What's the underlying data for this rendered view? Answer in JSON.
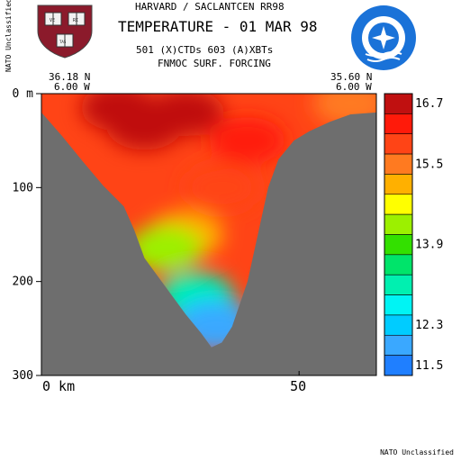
{
  "header": {
    "line1": "HARVARD / SACLANTCEN RR98",
    "title": "TEMPERATURE - 01 MAR 98",
    "line3": "501 (X)CTDs   603 (A)XBTs",
    "line4": "FNMOC SURF. FORCING"
  },
  "classification": {
    "side": "NATO Unclassified",
    "footer": "NATO Unclassified"
  },
  "endpoints": {
    "left_lat": "36.18 N",
    "left_lon": "6.00 W",
    "right_lat": "35.60 N",
    "right_lon": "6.00 W"
  },
  "logos": {
    "left": "harvard-shield",
    "left_text": [
      "VE",
      "RI",
      "TAS"
    ],
    "right": "nato-saclantcen-emblem"
  },
  "colors": {
    "land": "#6e6e6e",
    "background": "#ffffff"
  },
  "chart_data": {
    "type": "heatmap",
    "title": "TEMPERATURE - 01 MAR 98",
    "xlabel": "",
    "ylabel": "",
    "x_unit": "km",
    "y_unit": "m",
    "xlim": [
      0,
      65
    ],
    "ylim": [
      300,
      0
    ],
    "x_ticks": [
      0,
      50
    ],
    "x_tick_labels": [
      "0 km",
      "50"
    ],
    "y_ticks": [
      0,
      100,
      200,
      300
    ],
    "y_tick_labels": [
      "0 m",
      "100",
      "200",
      "300"
    ],
    "colorbar": {
      "labels": [
        "16.7",
        "15.5",
        "13.9",
        "12.3",
        "11.5"
      ],
      "levels": [
        {
          "color": "#c01010",
          "value": 16.7
        },
        {
          "color": "#ff1a0a",
          "value": 16.3
        },
        {
          "color": "#ff4416",
          "value": 15.9
        },
        {
          "color": "#ff7a20",
          "value": 15.5
        },
        {
          "color": "#ffb000",
          "value": 15.1
        },
        {
          "color": "#ffff00",
          "value": 14.7
        },
        {
          "color": "#9cf000",
          "value": 14.3
        },
        {
          "color": "#33e000",
          "value": 13.9
        },
        {
          "color": "#00e46a",
          "value": 13.5
        },
        {
          "color": "#00f0b0",
          "value": 13.1
        },
        {
          "color": "#00f4f4",
          "value": 12.7
        },
        {
          "color": "#00ccff",
          "value": 12.3
        },
        {
          "color": "#3aa8ff",
          "value": 11.9
        },
        {
          "color": "#1f7fff",
          "value": 11.5
        }
      ]
    },
    "bathymetry": {
      "x_km": [
        0,
        4,
        8,
        12,
        16,
        18,
        20,
        24,
        28,
        31,
        33,
        35,
        37,
        40,
        42,
        44,
        46,
        49,
        52,
        56,
        60,
        65
      ],
      "depth_m": [
        20,
        45,
        72,
        98,
        120,
        145,
        175,
        205,
        235,
        255,
        270,
        265,
        248,
        200,
        150,
        100,
        70,
        50,
        40,
        30,
        22,
        20
      ]
    },
    "temperature_field": [
      {
        "x_km": 15,
        "depth_m": 15,
        "value": 16.8
      },
      {
        "x_km": 20,
        "depth_m": 35,
        "value": 16.7
      },
      {
        "x_km": 28,
        "depth_m": 20,
        "value": 16.6
      },
      {
        "x_km": 40,
        "depth_m": 50,
        "value": 16.3
      },
      {
        "x_km": 35,
        "depth_m": 100,
        "value": 16.0
      },
      {
        "x_km": 60,
        "depth_m": 10,
        "value": 15.3
      },
      {
        "x_km": 28,
        "depth_m": 150,
        "value": 15.2
      },
      {
        "x_km": 24,
        "depth_m": 165,
        "value": 14.4
      },
      {
        "x_km": 30,
        "depth_m": 215,
        "value": 13.2
      },
      {
        "x_km": 33,
        "depth_m": 240,
        "value": 12.2
      },
      {
        "x_km": 34,
        "depth_m": 250,
        "value": 11.8
      }
    ]
  }
}
